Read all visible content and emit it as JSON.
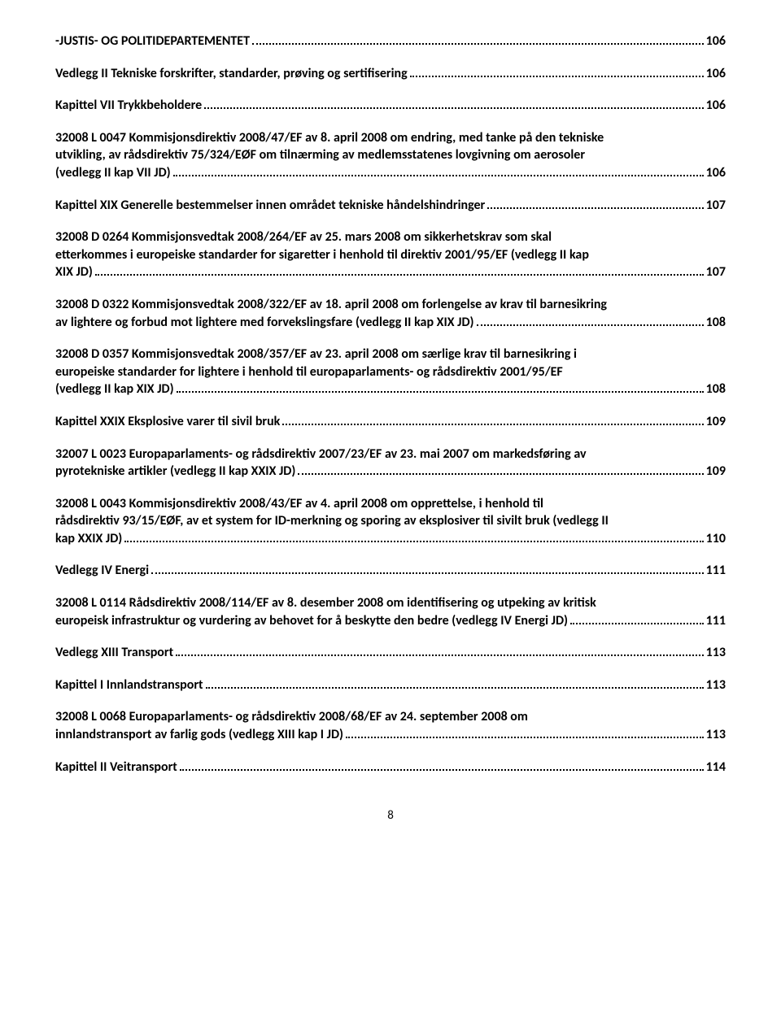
{
  "footer_page": "8",
  "entries": [
    {
      "lines": [
        {
          "text": "-JUSTIS- OG POLITIDEPARTEMENTET",
          "page": "106"
        }
      ]
    },
    {
      "lines": [
        {
          "text": "Vedlegg II Tekniske forskrifter, standarder, prøving og sertifisering",
          "page": "106"
        }
      ]
    },
    {
      "lines": [
        {
          "text": "Kapittel VII Trykkbeholdere",
          "page": "106"
        }
      ]
    },
    {
      "lines": [
        {
          "text": "32008 L 0047 Kommisjonsdirektiv 2008/47/EF av 8. april 2008 om endring, med tanke på den tekniske"
        },
        {
          "text": "utvikling, av rådsdirektiv 75/324/EØF om tilnærming av medlemsstatenes lovgivning om aerosoler"
        },
        {
          "text": "(vedlegg II kap VII JD)",
          "page": "106"
        }
      ]
    },
    {
      "lines": [
        {
          "text": "Kapittel XIX Generelle bestemmelser innen området tekniske håndelshindringer",
          "page": "107"
        }
      ]
    },
    {
      "lines": [
        {
          "text": "32008 D 0264 Kommisjonsvedtak 2008/264/EF av 25. mars 2008 om sikkerhetskrav som skal"
        },
        {
          "text": "etterkommes i europeiske standarder for sigaretter i henhold til direktiv 2001/95/EF (vedlegg II kap"
        },
        {
          "text": "XIX JD)",
          "page": "107"
        }
      ]
    },
    {
      "lines": [
        {
          "text": "32008 D 0322 Kommisjonsvedtak 2008/322/EF av 18. april 2008 om forlengelse av krav til barnesikring"
        },
        {
          "text": "av lightere og forbud mot lightere med forvekslingsfare (vedlegg II kap XIX JD)",
          "page": "108"
        }
      ]
    },
    {
      "lines": [
        {
          "text": "32008 D 0357 Kommisjonsvedtak 2008/357/EF av 23. april 2008 om særlige krav til barnesikring i"
        },
        {
          "text": "europeiske standarder for lightere i henhold til europaparlaments- og rådsdirektiv 2001/95/EF"
        },
        {
          "text": "(vedlegg II kap XIX JD)",
          "page": "108"
        }
      ]
    },
    {
      "lines": [
        {
          "text": "Kapittel XXIX Eksplosive varer til sivil bruk",
          "page": "109"
        }
      ]
    },
    {
      "lines": [
        {
          "text": "32007 L 0023 Europaparlaments- og rådsdirektiv 2007/23/EF av 23. mai 2007 om markedsføring av"
        },
        {
          "text": "pyrotekniske artikler (vedlegg II kap XXIX JD)",
          "page": "109"
        }
      ]
    },
    {
      "lines": [
        {
          "text": "32008 L 0043 Kommisjonsdirektiv 2008/43/EF av 4. april 2008 om opprettelse, i henhold til"
        },
        {
          "text": "rådsdirektiv 93/15/EØF, av et system for ID-merkning og sporing av eksplosiver til sivilt bruk (vedlegg II"
        },
        {
          "text": "kap XXIX JD)",
          "page": "110"
        }
      ]
    },
    {
      "lines": [
        {
          "text": "Vedlegg IV Energi",
          "page": "111"
        }
      ]
    },
    {
      "lines": [
        {
          "text": "32008 L 0114 Rådsdirektiv 2008/114/EF av 8. desember 2008 om identifisering og utpeking av kritisk"
        },
        {
          "text": "europeisk infrastruktur og vurdering av behovet for å beskytte den bedre (vedlegg IV Energi JD)",
          "page": "111"
        }
      ]
    },
    {
      "lines": [
        {
          "text": "Vedlegg XIII Transport",
          "page": "113"
        }
      ]
    },
    {
      "lines": [
        {
          "text": "Kapittel I Innlandstransport",
          "page": "113"
        }
      ]
    },
    {
      "lines": [
        {
          "text": "32008 L 0068 Europaparlaments- og rådsdirektiv 2008/68/EF av 24. september 2008 om"
        },
        {
          "text": "innlandstransport av farlig gods (vedlegg XIII kap I JD)",
          "page": "113"
        }
      ]
    },
    {
      "lines": [
        {
          "text": "Kapittel II Veitransport",
          "page": "114"
        }
      ]
    }
  ]
}
